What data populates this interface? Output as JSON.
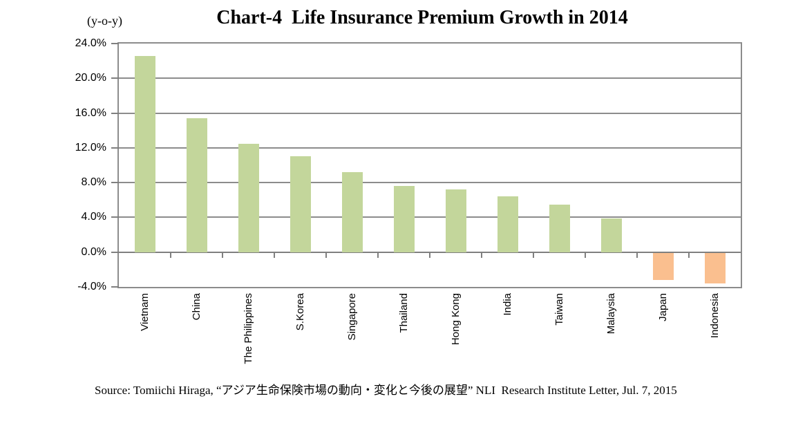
{
  "header": {
    "title": "Chart-4  Life Insurance Premium Growth in 2014",
    "yoy_label": "(y-o-y)"
  },
  "chart_data": {
    "type": "bar",
    "title": "Chart-4  Life Insurance Premium Growth in 2014",
    "unit_label": "(y-o-y)",
    "categories": [
      "Vietnam",
      "China",
      "The Philippines",
      "S.Korea",
      "Singapore",
      "Thailand",
      "Hong Kong",
      "India",
      "Taiwan",
      "Malaysia",
      "Japan",
      "Indonesia"
    ],
    "values": [
      22.6,
      15.4,
      12.5,
      11.0,
      9.2,
      7.6,
      7.2,
      6.4,
      5.5,
      3.9,
      -3.2,
      -3.6
    ],
    "ylabel": "",
    "xlabel": "",
    "ylim": [
      -4,
      24
    ],
    "ytick_step": 4,
    "ytick_labels": [
      "24.0%",
      "20.0%",
      "16.0%",
      "12.0%",
      "8.0%",
      "4.0%",
      "0.0%",
      "-4.0%"
    ],
    "grid": true,
    "legend": "none",
    "positive_color": "#c3d69b",
    "negative_color": "#fabf8f",
    "grid_color": "#8c8c8c",
    "axis_color": "#7f7f7f"
  },
  "footer": {
    "source": "Source: Tomiichi Hiraga, “アジア生命保険市場の動向・変化と今後の展望” NLI  Research Institute Letter, Jul. 7, 2015"
  }
}
